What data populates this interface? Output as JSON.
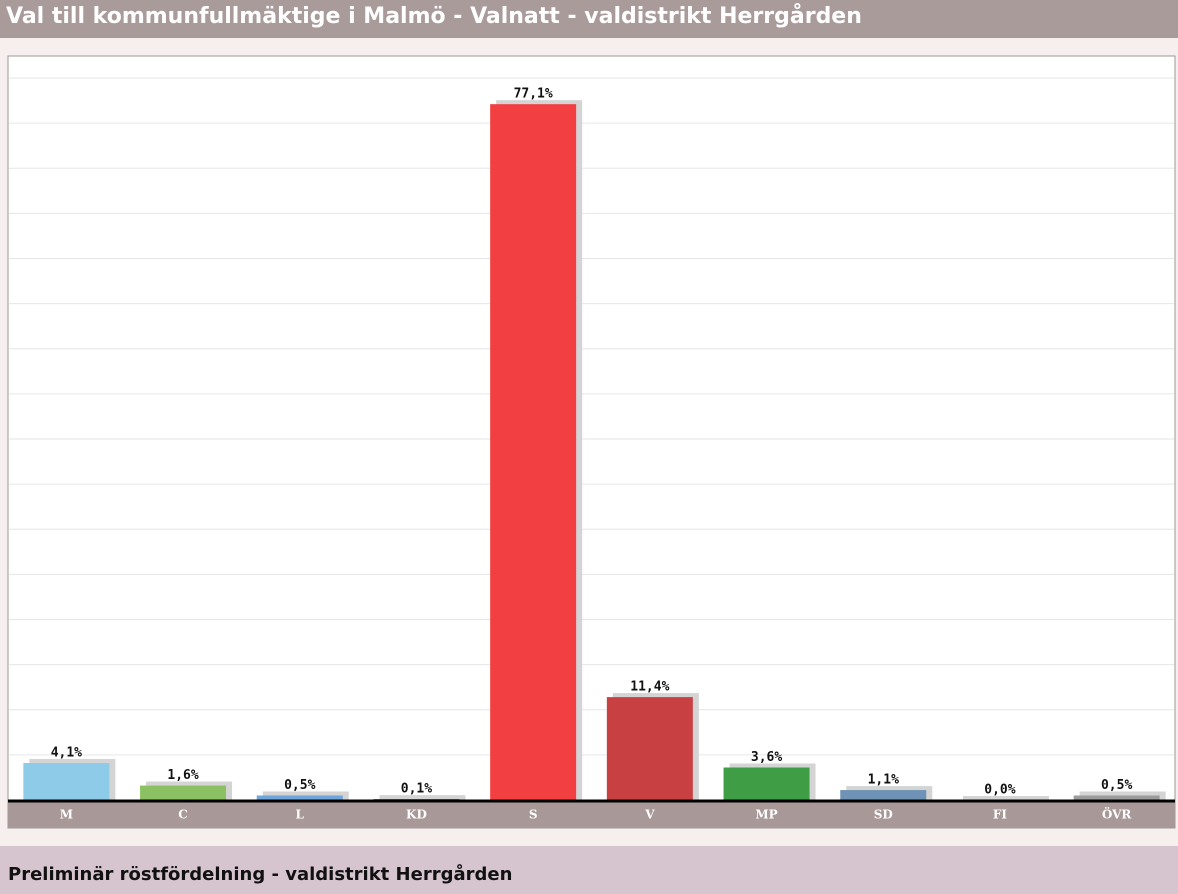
{
  "chart_data": {
    "type": "bar",
    "title": "Val till kommunfullmäktige i Malmö - Valnatt - valdistrikt Herrgården",
    "subtitle": "Preliminär röstfördelning - valdistrikt Herrgården",
    "categories": [
      "M",
      "C",
      "L",
      "KD",
      "S",
      "V",
      "MP",
      "SD",
      "FI",
      "ÖVR"
    ],
    "values": [
      4.1,
      1.6,
      0.5,
      0.1,
      77.1,
      11.4,
      3.6,
      1.1,
      0.0,
      0.5
    ],
    "value_labels": [
      "4,1%",
      "1,6%",
      "0,5%",
      "0,1%",
      "77,1%",
      "11,4%",
      "3,6%",
      "1,1%",
      "0,0%",
      "0,5%"
    ],
    "colors": [
      "#8ecbe8",
      "#8cc163",
      "#6fa6dc",
      "#3a5b9c",
      "#f23f42",
      "#c94043",
      "#3f9d45",
      "#6f93b6",
      "#e27ab6",
      "#9c9c9c"
    ],
    "ylim": [
      0,
      80
    ],
    "yticks": [
      0,
      5,
      10,
      15,
      20,
      25,
      30,
      35,
      40,
      45,
      50,
      55,
      60,
      65,
      70,
      75,
      80
    ],
    "grid": true
  }
}
